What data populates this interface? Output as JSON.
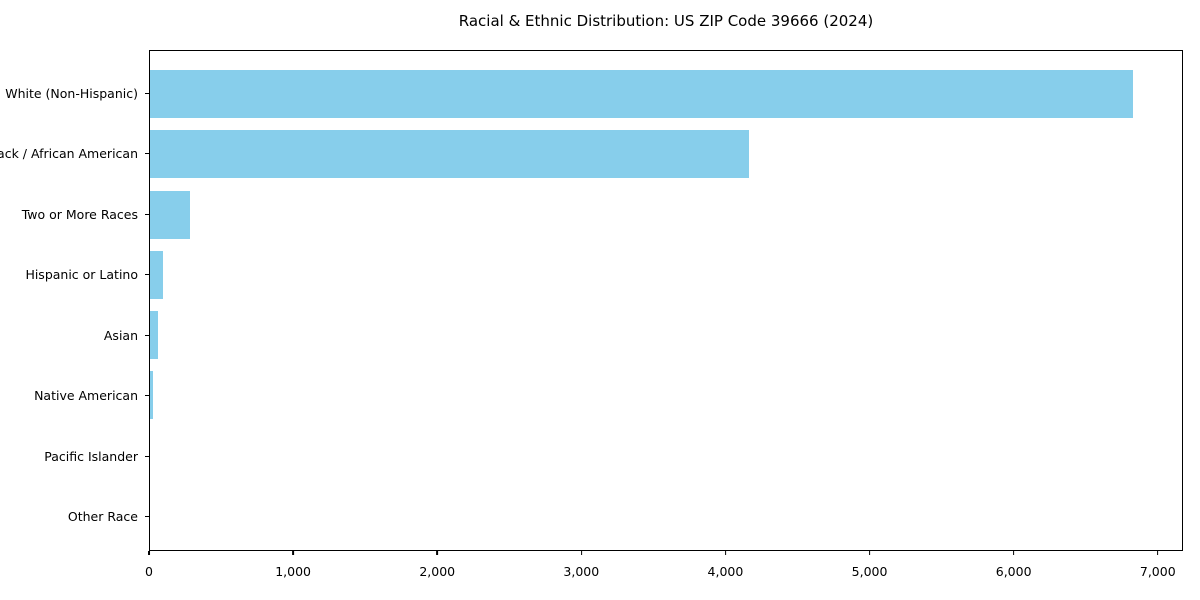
{
  "figure": {
    "background": "#ffffff",
    "text_color": "#000000",
    "frame_color": "#000000"
  },
  "chart_data": {
    "type": "bar",
    "orientation": "horizontal",
    "title": "Racial & Ethnic Distribution: US ZIP Code 39666 (2024)",
    "categories": [
      "White (Non-Hispanic)",
      "Black / African American",
      "Two or More Races",
      "Hispanic or Latino",
      "Asian",
      "Native American",
      "Pacific Islander",
      "Other Race"
    ],
    "values": [
      6834,
      4166,
      280,
      88,
      55,
      20,
      0,
      0
    ],
    "xlabel": "",
    "ylabel": "",
    "xlim": [
      0,
      7175
    ],
    "x_ticks": [
      0,
      1000,
      2000,
      3000,
      4000,
      5000,
      6000,
      7000
    ],
    "x_tick_labels": [
      "0",
      "1,000",
      "2,000",
      "3,000",
      "4,000",
      "5,000",
      "6,000",
      "7,000"
    ],
    "bar_color": "#87CEEB",
    "grid": false,
    "legend": null,
    "sort_order": "descending"
  }
}
